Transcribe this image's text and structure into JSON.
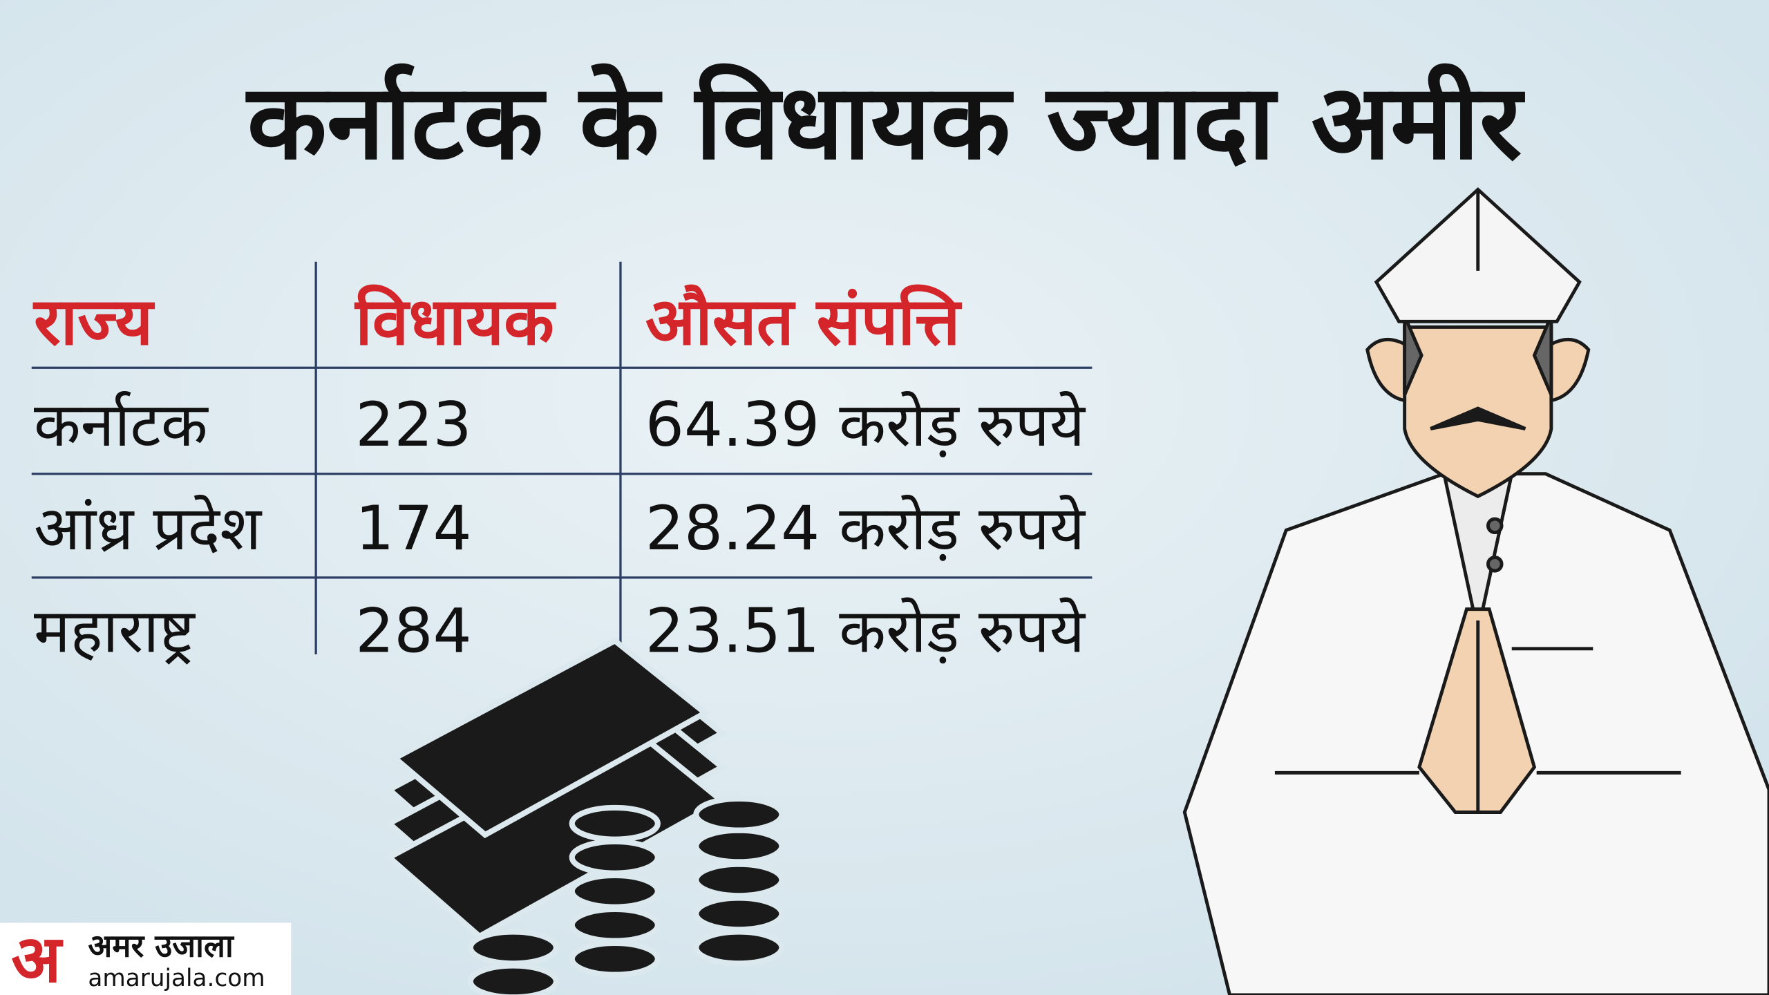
{
  "header": {
    "title": "कर्नाटक के विधायक ज्यादा अमीर"
  },
  "table": {
    "columns": [
      "राज्य",
      "विधायक",
      "औसत संपत्ति"
    ],
    "rows": [
      [
        "कर्नाटक",
        "223",
        "64.39 करोड़ रुपये"
      ],
      [
        "आंध्र प्रदेश",
        "174",
        "28.24 करोड़ रुपये"
      ],
      [
        "महाराष्ट्र",
        "284",
        "23.51 करोड़ रुपये"
      ]
    ]
  },
  "logo": {
    "mark": "अ",
    "name": "अमर उजाला",
    "site": "amarujala.com"
  }
}
